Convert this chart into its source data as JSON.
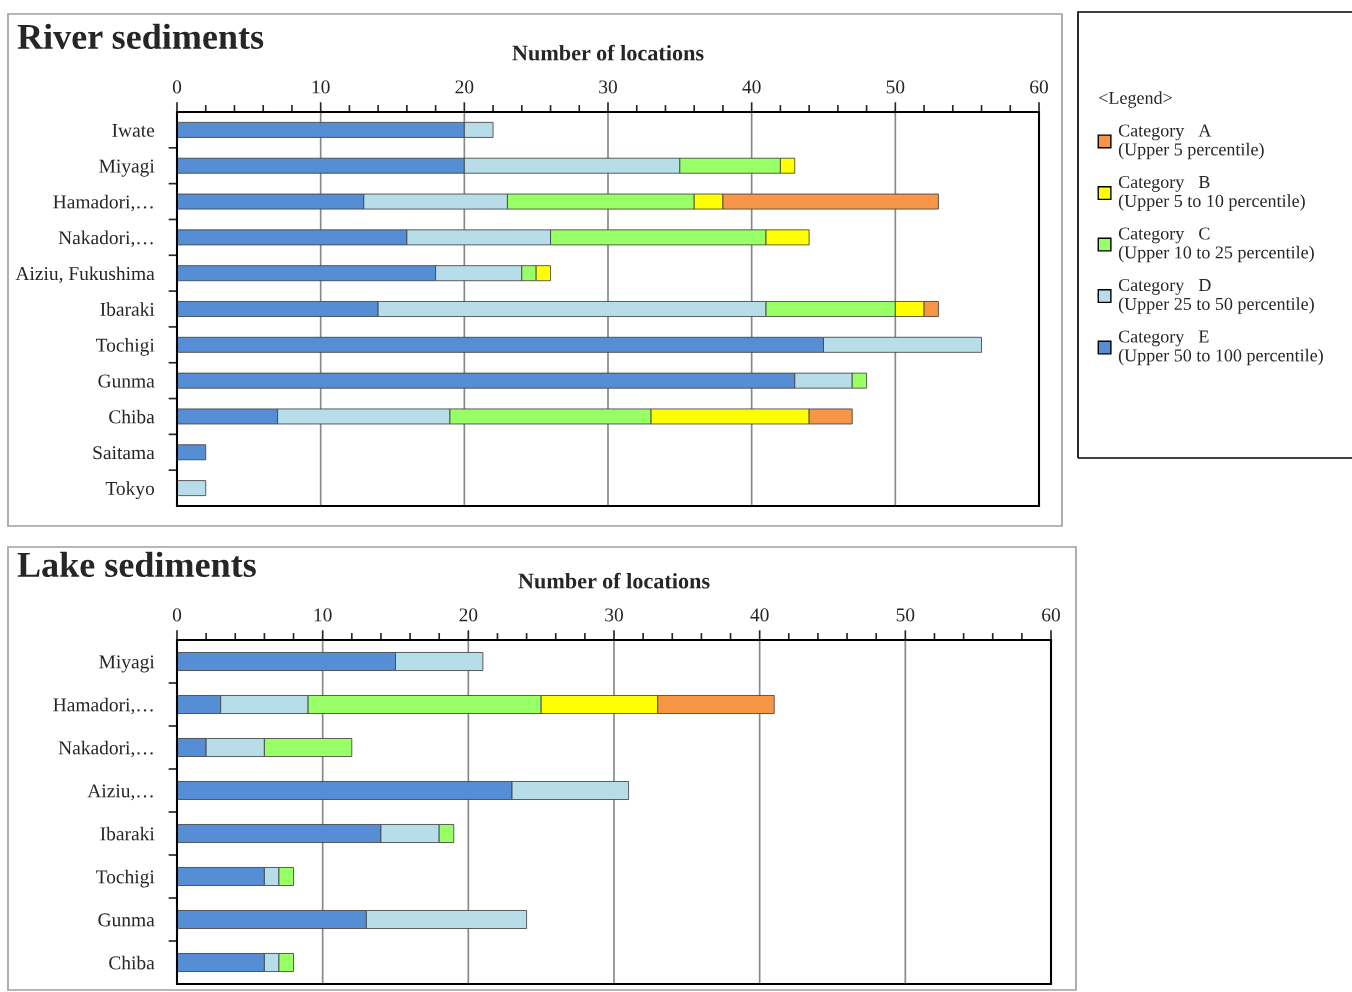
{
  "chart_data": [
    {
      "type": "bar",
      "title": "River sediments",
      "xlabel": "Number of locations",
      "orientation": "horizontal",
      "stacked": true,
      "grid": "x",
      "legend": "right",
      "legend_title": "<Legend>",
      "categories": [
        "Iwate",
        "Miyagi",
        "Hamadori,…",
        "Nakadori,…",
        "Aiziu, Fukushima",
        "Ibaraki",
        "Tochigi",
        "Gunma",
        "Chiba",
        "Saitama",
        "Tokyo"
      ],
      "xlim": [
        0,
        60
      ],
      "xticks": [
        0,
        10,
        20,
        30,
        40,
        50,
        60
      ],
      "series": [
        {
          "name": "Category　E\n(Upper 50 to 100 percentile)",
          "color": "#558ed5",
          "values": [
            20,
            20,
            13,
            16,
            18,
            14,
            45,
            43,
            7,
            2,
            0
          ]
        },
        {
          "name": "Category　D\n(Upper 25 to 50 percentile)",
          "color": "#b7dde8",
          "values": [
            2,
            15,
            10,
            10,
            6,
            27,
            11,
            4,
            12,
            0,
            2
          ]
        },
        {
          "name": "Category　C\n(Upper 10 to 25 percentile)",
          "color": "#99ff66",
          "values": [
            0,
            7,
            13,
            15,
            1,
            9,
            0,
            1,
            14,
            0,
            0
          ]
        },
        {
          "name": "Category　B\n(Upper 5 to 10 percentile)",
          "color": "#ffff00",
          "values": [
            0,
            1,
            2,
            3,
            1,
            2,
            0,
            0,
            11,
            0,
            0
          ]
        },
        {
          "name": "Category　A\n(Upper 5 percentile)",
          "color": "#f79646",
          "values": [
            0,
            0,
            15,
            0,
            0,
            1,
            0,
            0,
            3,
            0,
            0
          ]
        }
      ]
    },
    {
      "type": "bar",
      "title": "Lake sediments",
      "xlabel": "Number of locations",
      "orientation": "horizontal",
      "stacked": true,
      "grid": "x",
      "categories": [
        "Miyagi",
        "Hamadori,…",
        "Nakadori,…",
        "Aiziu,…",
        "Ibaraki",
        "Tochigi",
        "Gunma",
        "Chiba"
      ],
      "xlim": [
        0,
        60
      ],
      "xticks": [
        0,
        10,
        20,
        30,
        40,
        50,
        60
      ],
      "series": [
        {
          "color": "#558ed5",
          "values": [
            15,
            3,
            2,
            23,
            14,
            6,
            13,
            6
          ]
        },
        {
          "color": "#b7dde8",
          "values": [
            6,
            6,
            4,
            8,
            4,
            1,
            11,
            1
          ]
        },
        {
          "color": "#99ff66",
          "values": [
            0,
            16,
            6,
            0,
            1,
            1,
            0,
            1
          ]
        },
        {
          "color": "#ffff00",
          "values": [
            0,
            8,
            0,
            0,
            0,
            0,
            0,
            0
          ]
        },
        {
          "color": "#f79646",
          "values": [
            0,
            8,
            0,
            0,
            0,
            0,
            0,
            0
          ]
        }
      ]
    }
  ]
}
